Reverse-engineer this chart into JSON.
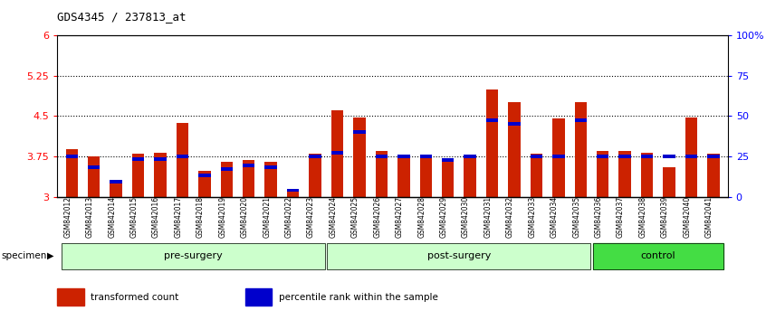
{
  "title": "GDS4345 / 237813_at",
  "samples": [
    "GSM842012",
    "GSM842013",
    "GSM842014",
    "GSM842015",
    "GSM842016",
    "GSM842017",
    "GSM842018",
    "GSM842019",
    "GSM842020",
    "GSM842021",
    "GSM842022",
    "GSM842023",
    "GSM842024",
    "GSM842025",
    "GSM842026",
    "GSM842027",
    "GSM842028",
    "GSM842029",
    "GSM842030",
    "GSM842031",
    "GSM842032",
    "GSM842033",
    "GSM842034",
    "GSM842035",
    "GSM842036",
    "GSM842037",
    "GSM842038",
    "GSM842039",
    "GSM842040",
    "GSM842041"
  ],
  "red_values": [
    3.88,
    3.75,
    3.25,
    3.8,
    3.82,
    4.37,
    3.48,
    3.65,
    3.68,
    3.65,
    3.1,
    3.8,
    4.6,
    4.48,
    3.85,
    3.78,
    3.78,
    3.7,
    3.78,
    5.0,
    4.75,
    3.8,
    4.45,
    4.75,
    3.85,
    3.85,
    3.82,
    3.55,
    4.48,
    3.8
  ],
  "blue_values": [
    3.75,
    3.55,
    3.28,
    3.7,
    3.7,
    3.75,
    3.4,
    3.52,
    3.58,
    3.55,
    3.12,
    3.75,
    3.82,
    4.2,
    3.75,
    3.75,
    3.75,
    3.68,
    3.75,
    4.42,
    4.35,
    3.75,
    3.75,
    4.42,
    3.75,
    3.75,
    3.75,
    3.75,
    3.75,
    3.75
  ],
  "ylim": [
    3.0,
    6.0
  ],
  "yticks_left": [
    3.0,
    3.75,
    4.5,
    5.25,
    6.0
  ],
  "ytick_labels_left": [
    "3",
    "3.75",
    "4.5",
    "5.25",
    "6"
  ],
  "yticks_right_vals": [
    0,
    25,
    50,
    75,
    100
  ],
  "ytick_labels_right": [
    "0",
    "25",
    "50",
    "75",
    "100%"
  ],
  "hlines": [
    3.75,
    4.5,
    5.25
  ],
  "bar_color_red": "#cc2200",
  "bar_color_blue": "#0000cc",
  "bar_width": 0.55,
  "group_data": [
    {
      "start": 0,
      "end": 11,
      "label": "pre-surgery",
      "color": "#ccffcc"
    },
    {
      "start": 12,
      "end": 23,
      "label": "post-surgery",
      "color": "#ccffcc"
    },
    {
      "start": 24,
      "end": 29,
      "label": "control",
      "color": "#44dd44"
    }
  ],
  "legend_items": [
    {
      "color": "#cc2200",
      "label": "transformed count"
    },
    {
      "color": "#0000cc",
      "label": "percentile rank within the sample"
    }
  ]
}
